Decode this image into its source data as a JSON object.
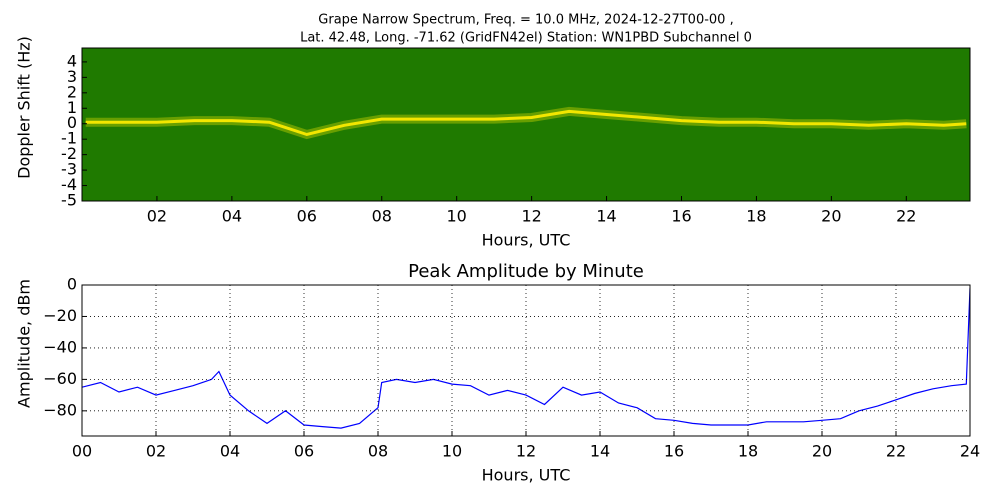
{
  "chart_data": [
    {
      "type": "spectrogram",
      "title": "Grape Narrow Spectrum, Freq. = 10.0 MHz, 2024-12-27T00-00 ,",
      "subtitle": "Lat.  42.48, Long. -71.62 (GridFN42el) Station: WN1PBD Subchannel 0",
      "xlabel": "Hours, UTC",
      "ylabel": "Doppler Shift (Hz)",
      "background": "#1f7a00",
      "color": "#f2e600",
      "xlim": [
        0,
        23.7
      ],
      "ylim": [
        -5,
        4.9
      ],
      "xticks": [
        {
          "value": 2,
          "label": "02"
        },
        {
          "value": 4,
          "label": "04"
        },
        {
          "value": 6,
          "label": "06"
        },
        {
          "value": 8,
          "label": "08"
        },
        {
          "value": 10,
          "label": "10"
        },
        {
          "value": 12,
          "label": "12"
        },
        {
          "value": 14,
          "label": "14"
        },
        {
          "value": 16,
          "label": "16"
        },
        {
          "value": 18,
          "label": "18"
        },
        {
          "value": 20,
          "label": "20"
        },
        {
          "value": 22,
          "label": "22"
        }
      ],
      "yticks": [
        4,
        3,
        2,
        1,
        0,
        -1,
        -2,
        -3,
        -4,
        -5
      ],
      "series": [
        {
          "color": "#f2e600",
          "x": [
            0.1,
            1,
            2,
            3,
            4,
            5,
            6,
            7,
            8,
            9,
            10,
            11,
            12,
            13,
            14,
            15,
            16,
            17,
            18,
            19,
            20,
            21,
            22,
            23,
            23.6
          ],
          "values": [
            0.1,
            0.1,
            0.1,
            0.2,
            0.2,
            0.1,
            -0.7,
            -0.1,
            0.3,
            0.3,
            0.3,
            0.3,
            0.4,
            0.8,
            0.6,
            0.4,
            0.2,
            0.1,
            0.1,
            0,
            0,
            -0.1,
            0,
            -0.1,
            0
          ]
        }
      ]
    },
    {
      "type": "line",
      "title": "Peak Amplitude by Minute",
      "xlabel": "Hours, UTC",
      "ylabel": "Amplitude, dBm",
      "xlim": [
        0,
        24
      ],
      "ylim": [
        -96,
        0
      ],
      "grid": true,
      "xticks": [
        {
          "value": 0,
          "label": "00"
        },
        {
          "value": 2,
          "label": "02"
        },
        {
          "value": 4,
          "label": "04"
        },
        {
          "value": 6,
          "label": "06"
        },
        {
          "value": 8,
          "label": "08"
        },
        {
          "value": 10,
          "label": "10"
        },
        {
          "value": 12,
          "label": "12"
        },
        {
          "value": 14,
          "label": "14"
        },
        {
          "value": 16,
          "label": "16"
        },
        {
          "value": 18,
          "label": "18"
        },
        {
          "value": 20,
          "label": "20"
        },
        {
          "value": 22,
          "label": "22"
        },
        {
          "value": 24,
          "label": "24"
        }
      ],
      "yticks": [
        0,
        {
          "value": -20,
          "label": "−20"
        },
        {
          "value": -40,
          "label": "−40"
        },
        {
          "value": -60,
          "label": "−60"
        },
        {
          "value": -80,
          "label": "−80"
        }
      ],
      "series": [
        {
          "color": "#0000ff",
          "x": [
            0,
            0.5,
            1,
            1.5,
            2,
            2.5,
            3,
            3.5,
            3.7,
            4,
            4.5,
            5,
            5.5,
            6,
            6.5,
            7,
            7.5,
            8,
            8.1,
            8.5,
            9,
            9.5,
            10,
            10.5,
            11,
            11.5,
            12,
            12.5,
            13,
            13.5,
            14,
            14.5,
            15,
            15.5,
            16,
            16.5,
            17,
            17.5,
            18,
            18.5,
            19,
            19.5,
            20,
            20.5,
            21,
            21.5,
            22,
            22.5,
            23,
            23.5,
            23.9,
            24
          ],
          "values": [
            -65,
            -62,
            -68,
            -65,
            -70,
            -67,
            -64,
            -60,
            -55,
            -70,
            -80,
            -88,
            -80,
            -89,
            -90,
            -91,
            -88,
            -78,
            -62,
            -60,
            -62,
            -60,
            -63,
            -64,
            -70,
            -67,
            -70,
            -76,
            -65,
            -70,
            -68,
            -75,
            -78,
            -85,
            -86,
            -88,
            -89,
            -89,
            -89,
            -87,
            -87,
            -87,
            -86,
            -85,
            -80,
            -77,
            -73,
            -69,
            -66,
            -64,
            -63,
            -2
          ]
        }
      ]
    }
  ]
}
